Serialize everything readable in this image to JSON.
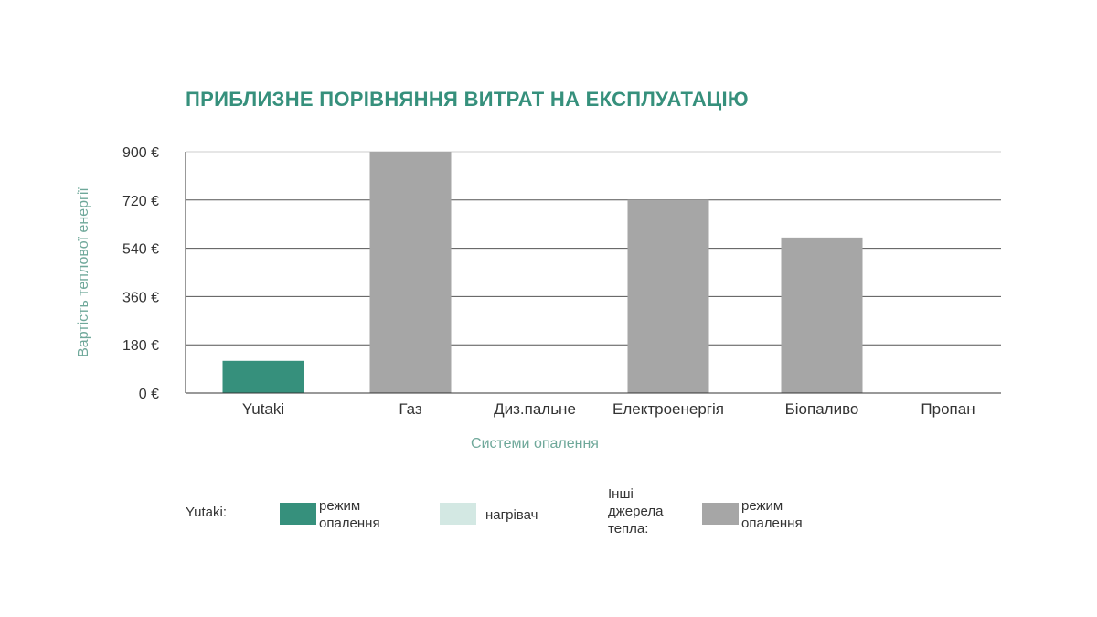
{
  "chart_data": {
    "type": "bar",
    "title": "ПРИБЛИЗНЕ ПОРІВНЯННЯ ВИТРАТ НА ЕКСПЛУАТАЦІЮ",
    "xlabel": "Системи опалення",
    "ylabel": "Вартість теплової енергії",
    "categories": [
      "Yutaki",
      "Газ",
      "Диз.пальне",
      "Електроенергія",
      "Біопаливо",
      "Пропан"
    ],
    "series": [
      {
        "name": "режим опалення",
        "values": [
          120,
          900,
          null,
          720,
          580,
          null
        ],
        "colors": [
          "#36907c",
          "#a6a6a6",
          "#a6a6a6",
          "#a6a6a6",
          "#a6a6a6",
          "#a6a6a6"
        ]
      }
    ],
    "ylim": [
      0,
      900
    ],
    "yticks": [
      0,
      180,
      360,
      540,
      720,
      900
    ],
    "ytick_labels": [
      "0 €",
      "180 €",
      "360 €",
      "540 €",
      "720 €",
      "900 €"
    ],
    "grid": true,
    "legend": {
      "groups": [
        {
          "label": "Yutaki:",
          "items": [
            {
              "label": "режим опалення",
              "color": "#36907c"
            },
            {
              "label": "нагрівач",
              "color": "#d3e8e3"
            }
          ]
        },
        {
          "label": "Інші джерела тепла:",
          "items": [
            {
              "label": "режим опалення",
              "color": "#a6a6a6"
            }
          ]
        }
      ],
      "placement": "bottom"
    },
    "colors": {
      "accent": "#36907c",
      "gray": "#a6a6a6",
      "light_accent": "#d3e8e3",
      "axis_label": "#6fa89a",
      "text": "#333333"
    }
  }
}
